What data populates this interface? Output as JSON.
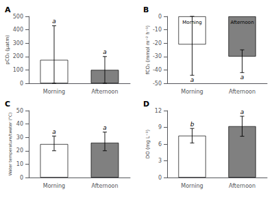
{
  "chart_data": [
    {
      "type": "bar",
      "title": "A",
      "ylabel": "pCO₂ (µatm)",
      "categories": [
        "Morning",
        "Afternoon"
      ],
      "values": [
        175,
        100
      ],
      "errors_upper": [
        255,
        100
      ],
      "errors_lower": [
        175,
        100
      ],
      "sig_labels": [
        "a",
        "a"
      ],
      "colors": [
        "white",
        "#808080"
      ],
      "ylim": [
        0,
        500
      ],
      "yticks": [
        0,
        100,
        200,
        300,
        400,
        500
      ],
      "grid": false
    },
    {
      "type": "bar",
      "title": "B",
      "ylabel": "fCO₂ (mmol m⁻² h⁻¹)",
      "categories": [
        "Morning",
        "Afternoon"
      ],
      "values": [
        -21,
        -30
      ],
      "errors_upper": [
        21,
        5
      ],
      "errors_lower": [
        23,
        12
      ],
      "sig_labels": [
        "a",
        "a"
      ],
      "colors": [
        "white",
        "#808080"
      ],
      "bar_text": [
        "Morning",
        "Afternoon"
      ],
      "ylim": [
        -50,
        0
      ],
      "yticks": [
        -50,
        -40,
        -30,
        -20,
        -10,
        0
      ],
      "grid": false
    },
    {
      "type": "bar",
      "title": "C",
      "ylabel": "Water temperature/twater (°C)",
      "categories": [
        "Morning",
        "Afternoon"
      ],
      "values": [
        25,
        26
      ],
      "errors_upper": [
        6,
        8
      ],
      "errors_lower": [
        5,
        6
      ],
      "sig_labels": [
        "a",
        "a"
      ],
      "colors": [
        "white",
        "#808080"
      ],
      "ylim": [
        0,
        50
      ],
      "yticks": [
        0,
        10,
        20,
        30,
        40,
        50
      ],
      "grid": false
    },
    {
      "type": "bar",
      "title": "D",
      "ylabel": "DO (mg L⁻¹)",
      "categories": [
        "Morning",
        "Afternoon"
      ],
      "values": [
        7.5,
        9.2
      ],
      "errors_upper": [
        1.3,
        1.8
      ],
      "errors_lower": [
        1.3,
        1.8
      ],
      "sig_labels": [
        "b",
        "a"
      ],
      "colors": [
        "white",
        "#808080"
      ],
      "ylim": [
        0,
        12
      ],
      "yticks": [
        0,
        3,
        6,
        9,
        12
      ],
      "grid": false
    }
  ]
}
